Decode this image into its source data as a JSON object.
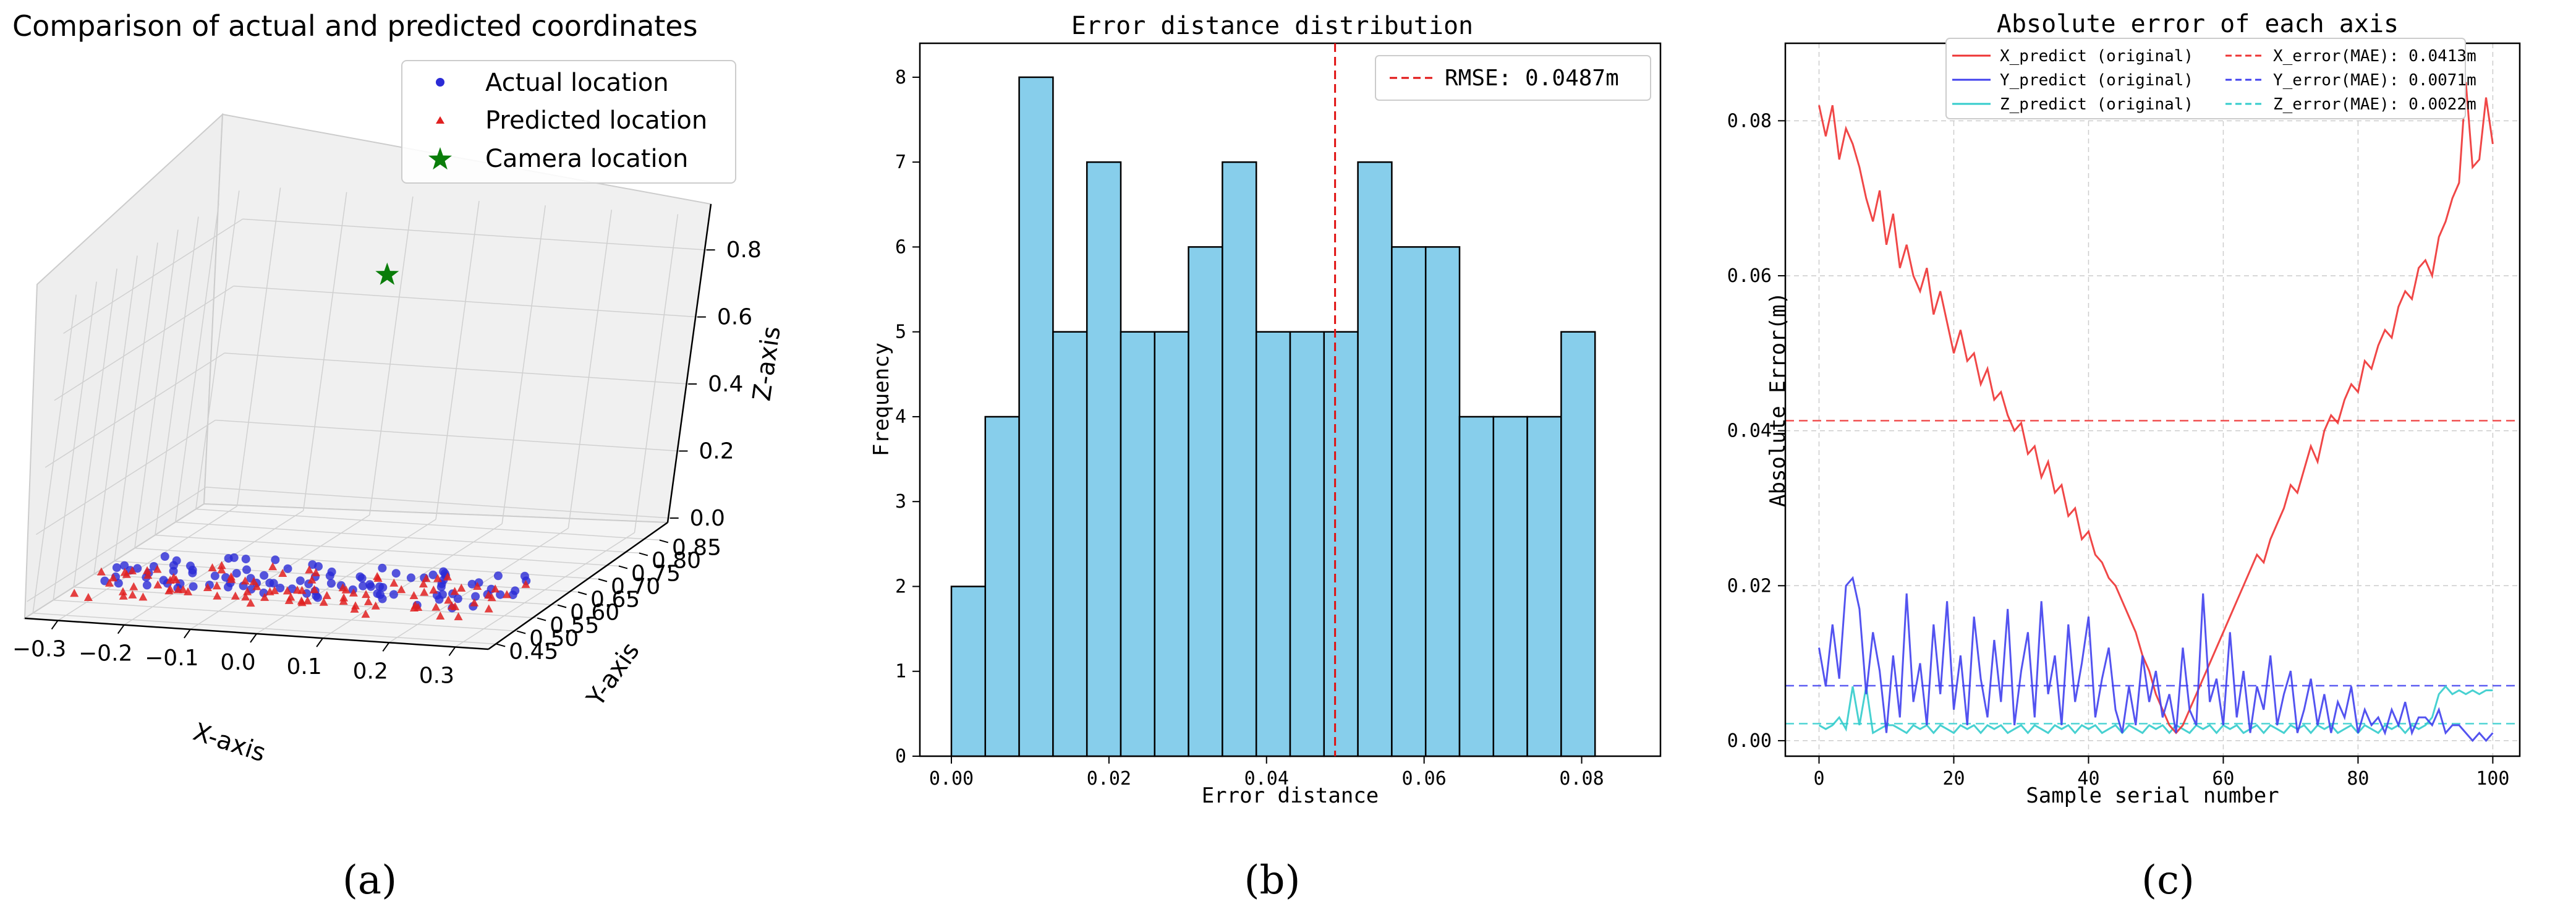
{
  "panels": [
    {
      "label": "(a)"
    },
    {
      "label": "(b)"
    },
    {
      "label": "(c)"
    }
  ],
  "chart_data": [
    {
      "type": "scatter",
      "title": "Comparison of actual and predicted coordinates",
      "xlabel": "X-axis",
      "ylabel": "Y-axis",
      "zlabel": "Z-axis",
      "xlim": [
        -0.35,
        0.35
      ],
      "ylim": [
        0.43,
        0.87
      ],
      "zlim": [
        -0.05,
        0.9
      ],
      "x_ticks": [
        "−0.3",
        "−0.2",
        "−0.1",
        "0.0",
        "0.1",
        "0.2",
        "0.3"
      ],
      "y_ticks": [
        "0.45",
        "0.50",
        "0.55",
        "0.60",
        "0.65",
        "0.70",
        "0.75",
        "0.80",
        "0.85"
      ],
      "z_ticks": [
        "0.0",
        "0.2",
        "0.4",
        "0.6",
        "0.8"
      ],
      "legend_position": "top-right",
      "colors": {
        "actual": "#2b2bd6",
        "predicted": "#e02020",
        "camera": "#0a7d0a"
      },
      "series": [
        {
          "name": "Actual location",
          "marker": "circle",
          "points": []
        },
        {
          "name": "Predicted location",
          "marker": "triangle",
          "points": []
        },
        {
          "name": "Camera location",
          "marker": "star",
          "points": [
            [
              0.0,
              0.65,
              0.85
            ]
          ]
        }
      ]
    },
    {
      "type": "bar",
      "title": "Error distance distribution",
      "xlabel": "Error distance",
      "ylabel": "Frequency",
      "xlim": [
        -0.004,
        0.09
      ],
      "ylim": [
        0,
        8.4
      ],
      "x_ticks": [
        "0.00",
        "0.02",
        "0.04",
        "0.06",
        "0.08"
      ],
      "y_ticks": [
        "0",
        "1",
        "2",
        "3",
        "4",
        "5",
        "6",
        "7",
        "8"
      ],
      "bin_start": 0.0,
      "bin_width": 0.0043,
      "values": [
        2,
        4,
        8,
        5,
        7,
        5,
        5,
        6,
        7,
        5,
        5,
        5,
        7,
        6,
        6,
        4,
        4,
        4,
        5
      ],
      "rmse_value": 0.0487,
      "rmse_label": "RMSE: 0.0487m",
      "legend_position": "top-right",
      "colors": {
        "bar": "#87ceeb",
        "edge": "#000000",
        "rmse": "#e01010"
      }
    },
    {
      "type": "line",
      "title": "Absolute error of each axis",
      "xlabel": "Sample serial number",
      "ylabel": "Absolute Error(m)",
      "xlim": [
        -5,
        104
      ],
      "ylim": [
        -0.002,
        0.09
      ],
      "x_ticks": [
        "0",
        "20",
        "40",
        "60",
        "80",
        "100"
      ],
      "y_ticks": [
        "0.00",
        "0.02",
        "0.04",
        "0.06",
        "0.08"
      ],
      "grid": true,
      "legend_position": "top",
      "series": [
        {
          "name": "X_predict (original)",
          "color": "#ee3333",
          "values": [
            0.082,
            0.078,
            0.082,
            0.075,
            0.079,
            0.077,
            0.074,
            0.07,
            0.067,
            0.071,
            0.064,
            0.068,
            0.061,
            0.064,
            0.06,
            0.058,
            0.061,
            0.055,
            0.058,
            0.054,
            0.05,
            0.053,
            0.049,
            0.05,
            0.046,
            0.048,
            0.044,
            0.045,
            0.042,
            0.04,
            0.041,
            0.037,
            0.038,
            0.034,
            0.036,
            0.032,
            0.033,
            0.029,
            0.03,
            0.026,
            0.027,
            0.024,
            0.023,
            0.021,
            0.02,
            0.018,
            0.016,
            0.014,
            0.011,
            0.009,
            0.006,
            0.004,
            0.002,
            0.001,
            0.002,
            0.004,
            0.006,
            0.008,
            0.01,
            0.012,
            0.014,
            0.016,
            0.018,
            0.02,
            0.022,
            0.024,
            0.023,
            0.026,
            0.028,
            0.03,
            0.033,
            0.032,
            0.035,
            0.038,
            0.036,
            0.04,
            0.042,
            0.041,
            0.044,
            0.046,
            0.045,
            0.049,
            0.048,
            0.051,
            0.053,
            0.052,
            0.056,
            0.058,
            0.057,
            0.061,
            0.062,
            0.06,
            0.065,
            0.067,
            0.07,
            0.072,
            0.085,
            0.074,
            0.075,
            0.083,
            0.077
          ]
        },
        {
          "name": "Y_predict (original)",
          "color": "#4040ee",
          "values": [
            0.012,
            0.007,
            0.015,
            0.008,
            0.02,
            0.021,
            0.017,
            0.006,
            0.014,
            0.009,
            0.001,
            0.011,
            0.003,
            0.019,
            0.005,
            0.01,
            0.002,
            0.015,
            0.006,
            0.018,
            0.004,
            0.011,
            0.002,
            0.016,
            0.008,
            0.003,
            0.013,
            0.005,
            0.017,
            0.002,
            0.009,
            0.014,
            0.003,
            0.018,
            0.006,
            0.011,
            0.002,
            0.015,
            0.005,
            0.01,
            0.016,
            0.003,
            0.008,
            0.012,
            0.004,
            0.001,
            0.007,
            0.002,
            0.011,
            0.005,
            0.009,
            0.003,
            0.006,
            0.001,
            0.012,
            0.004,
            0.002,
            0.019,
            0.005,
            0.008,
            0.002,
            0.014,
            0.003,
            0.009,
            0.001,
            0.007,
            0.004,
            0.011,
            0.002,
            0.006,
            0.009,
            0.001,
            0.004,
            0.008,
            0.002,
            0.006,
            0.001,
            0.005,
            0.003,
            0.007,
            0.001,
            0.004,
            0.002,
            0.003,
            0.001,
            0.004,
            0.002,
            0.005,
            0.001,
            0.003,
            0.003,
            0.002,
            0.004,
            0.001,
            0.002,
            0.002,
            0.001,
            0.0,
            0.001,
            0.0,
            0.001
          ]
        },
        {
          "name": "Z_predict (original)",
          "color": "#33cccc",
          "values": [
            0.002,
            0.0015,
            0.002,
            0.003,
            0.0015,
            0.007,
            0.002,
            0.007,
            0.001,
            0.0015,
            0.002,
            0.002,
            0.0015,
            0.001,
            0.002,
            0.0015,
            0.002,
            0.001,
            0.002,
            0.0015,
            0.001,
            0.002,
            0.0015,
            0.002,
            0.001,
            0.002,
            0.0015,
            0.002,
            0.001,
            0.0015,
            0.002,
            0.001,
            0.002,
            0.0015,
            0.001,
            0.002,
            0.0015,
            0.002,
            0.001,
            0.002,
            0.0015,
            0.002,
            0.001,
            0.0015,
            0.002,
            0.001,
            0.002,
            0.0015,
            0.001,
            0.002,
            0.0015,
            0.002,
            0.001,
            0.002,
            0.0015,
            0.001,
            0.002,
            0.0015,
            0.002,
            0.001,
            0.002,
            0.0015,
            0.002,
            0.001,
            0.0015,
            0.002,
            0.001,
            0.002,
            0.0015,
            0.001,
            0.002,
            0.0015,
            0.002,
            0.001,
            0.002,
            0.0015,
            0.002,
            0.001,
            0.0015,
            0.002,
            0.001,
            0.002,
            0.0015,
            0.001,
            0.002,
            0.0015,
            0.002,
            0.001,
            0.002,
            0.0015,
            0.002,
            0.003,
            0.006,
            0.007,
            0.006,
            0.0065,
            0.006,
            0.0065,
            0.006,
            0.0065,
            0.0065
          ]
        },
        {
          "name": "X_error(MAE): 0.0413m",
          "color": "#ee3333",
          "dashed": true,
          "mean": 0.0413
        },
        {
          "name": "Y_error(MAE): 0.0071m",
          "color": "#4040ee",
          "dashed": true,
          "mean": 0.0071
        },
        {
          "name": "Z_error(MAE): 0.0022m",
          "color": "#33cccc",
          "dashed": true,
          "mean": 0.0022
        }
      ]
    }
  ]
}
